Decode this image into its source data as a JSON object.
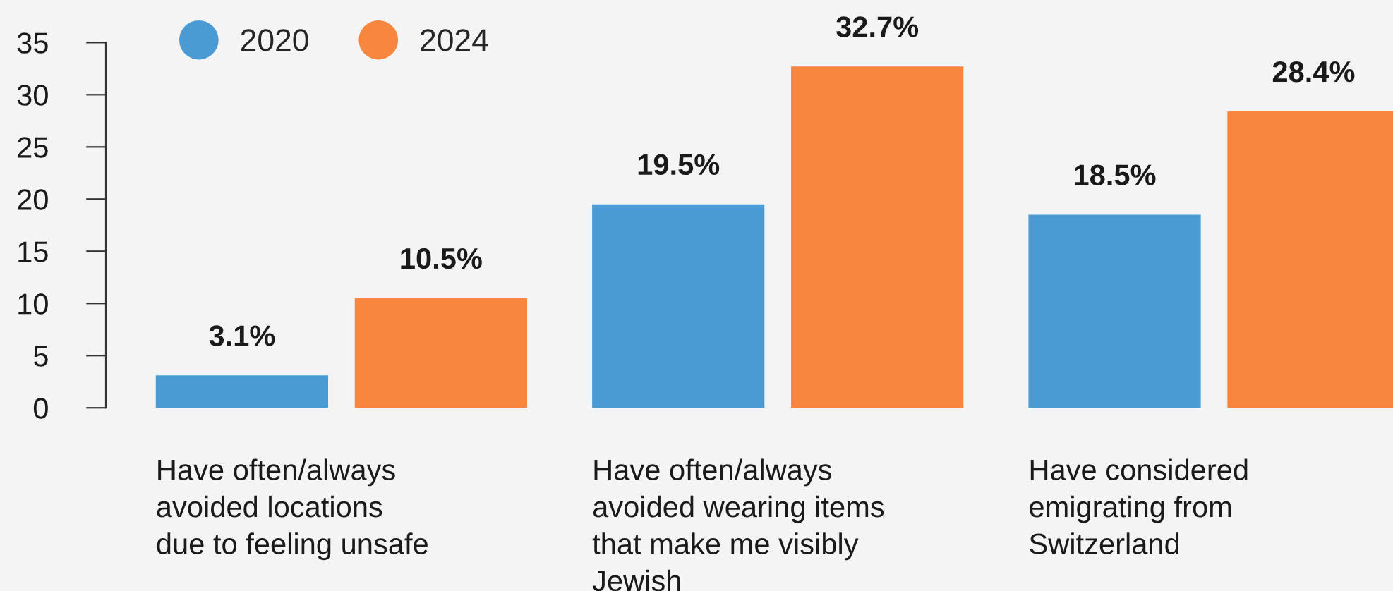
{
  "chart_data": {
    "type": "bar",
    "categories": [
      "Have often/always\navoided locations\ndue to feeling unsafe",
      "Have often/always\navoided wearing items\nthat make me visibly\nJewish",
      "Have considered\nemigrating from\nSwitzerland"
    ],
    "series": [
      {
        "name": "2020",
        "color": "#4a9bd4",
        "values": [
          3.1,
          19.5,
          18.5
        ],
        "value_labels": [
          "3.1%",
          "19.5%",
          "18.5%"
        ]
      },
      {
        "name": "2024",
        "color": "#f8863f",
        "values": [
          10.5,
          32.7,
          28.4
        ],
        "value_labels": [
          "10.5%",
          "32.7%",
          "28.4%"
        ]
      }
    ],
    "ylim": [
      0,
      35
    ],
    "yticks": [
      0,
      5,
      10,
      15,
      20,
      25,
      30,
      35
    ],
    "grid": false,
    "legend": "top left"
  }
}
